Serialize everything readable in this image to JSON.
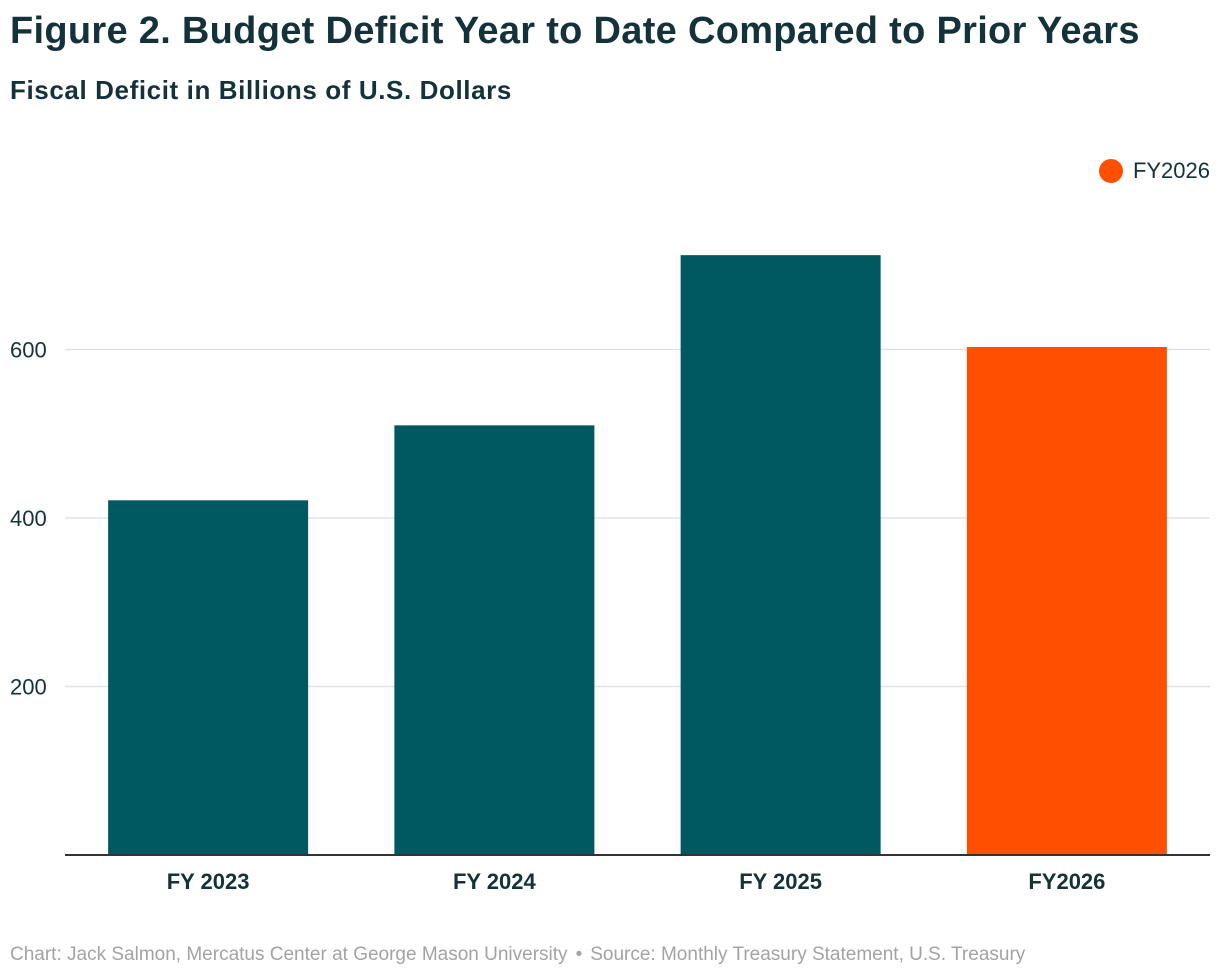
{
  "chart_data": {
    "type": "bar",
    "title": "Figure 2. Budget Deficit Year to Date Compared to Prior Years",
    "subtitle": "Fiscal Deficit in Billions of U.S. Dollars",
    "categories": [
      "FY 2023",
      "FY 2024",
      "FY 2025",
      "FY2026"
    ],
    "values": [
      421,
      510,
      712,
      603
    ],
    "bar_colors": [
      "#005961",
      "#005961",
      "#005961",
      "#ff4f00"
    ],
    "xlabel": "",
    "ylabel": "",
    "ylim": [
      0,
      750
    ],
    "y_ticks": [
      200,
      400,
      600
    ],
    "grid": true,
    "legend": {
      "position": "top-right",
      "entries": [
        {
          "label": "FY2026",
          "color": "#ff4f00"
        }
      ]
    }
  },
  "footer": {
    "chart_credit": "Chart: Jack Salmon, Mercatus Center at George Mason University",
    "separator": "•",
    "source": "Source: Monthly Treasury Statement, U.S. Treasury"
  },
  "colors": {
    "text": "#14323a",
    "grid": "#e2e2e2",
    "axis": "#333333",
    "footer": "#a3a3a3"
  }
}
